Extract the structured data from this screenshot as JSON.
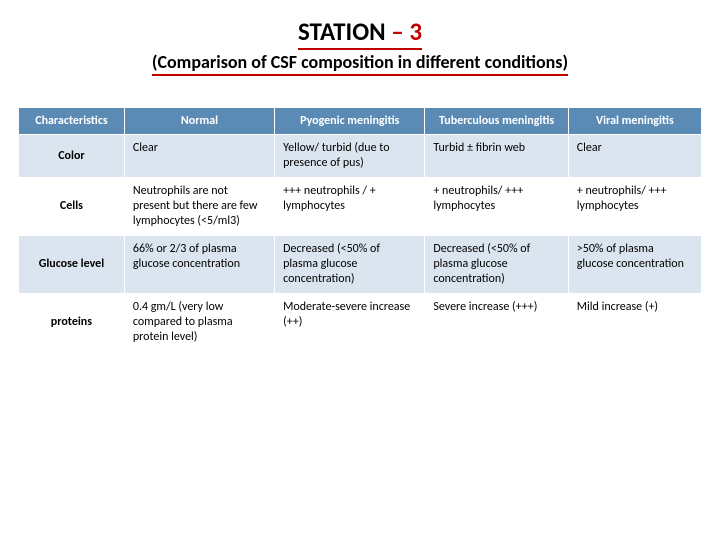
{
  "title": {
    "main_prefix": "STATION ",
    "dash": "– ",
    "num": "3"
  },
  "subtitle": "(Comparison of CSF composition in different conditions)",
  "table": {
    "columns": [
      "Characteristics",
      "Normal",
      "Pyogenic meningitis",
      "Tuberculous meningitis",
      "Viral meningitis"
    ],
    "rows": [
      {
        "label": "Color",
        "cells": [
          "Clear",
          "Yellow/ turbid (due to presence of pus)",
          "Turbid ± fibrin web",
          "Clear"
        ]
      },
      {
        "label": "Cells",
        "cells": [
          "Neutrophils are not present but there are few lymphocytes (<5/ml3)",
          "+++ neutrophils / + lymphocytes",
          "+ neutrophils/ +++ lymphocytes",
          "+ neutrophils/ +++ lymphocytes"
        ]
      },
      {
        "label": "Glucose level",
        "cells": [
          "66% or 2/3 of plasma glucose concentration",
          "Decreased (<50% of plasma glucose concentration)",
          "Decreased (<50% of plasma glucose concentration)",
          ">50% of plasma glucose concentration"
        ]
      },
      {
        "label": "proteins",
        "cells": [
          "0.4 gm/L (very low compared to plasma protein level)",
          "Moderate-severe increase (++)",
          "Severe increase (+++)",
          "Mild increase (+)"
        ]
      }
    ]
  },
  "style": {
    "accent_color": "#c00000",
    "header_bg": "#5b8bb5",
    "row_alt_bg": "#dbe5ef",
    "background": "#ffffff",
    "text_color": "#000000",
    "title_fontsize_pt": 19,
    "subtitle_fontsize_pt": 14,
    "table_fontsize_pt": 9,
    "column_widths_pct": [
      15.5,
      22,
      22,
      21,
      19.5
    ]
  }
}
